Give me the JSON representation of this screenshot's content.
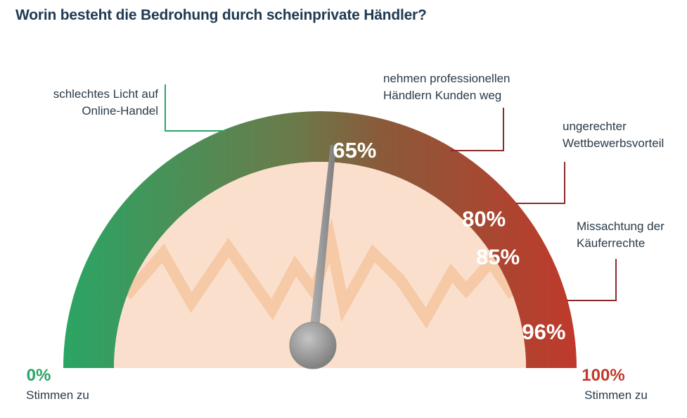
{
  "title": "Worin besteht die Bedrohung durch scheinprivate Händler?",
  "chart_data": {
    "type": "gauge",
    "range": [
      0,
      100
    ],
    "min_label": {
      "value": "0%",
      "text": "Stimmen zu"
    },
    "max_label": {
      "value": "100%",
      "text": "Stimmen zu"
    },
    "items": [
      {
        "label": [
          "schlechtes Licht auf",
          "Online-Handel"
        ],
        "value": 65,
        "value_label": "65%"
      },
      {
        "label": [
          "nehmen professionellen",
          "Händlern Kunden weg"
        ],
        "value": 80,
        "value_label": "80%"
      },
      {
        "label": [
          "ungerechter",
          "Wettbewerbsvorteil"
        ],
        "value": 85,
        "value_label": "85%"
      },
      {
        "label": [
          "Missachtung der",
          "Käuferrechte"
        ],
        "value": 96,
        "value_label": "96%"
      }
    ],
    "colors": {
      "start": "#2aa564",
      "end": "#c0392b",
      "inner_fill": "#fae0cc",
      "zigzag": "#f5c4a0",
      "needle": "#9a9a9a",
      "title": "#1f3a52",
      "callout_left": "#2aa564",
      "callout_right": "#8b2a2a"
    }
  }
}
